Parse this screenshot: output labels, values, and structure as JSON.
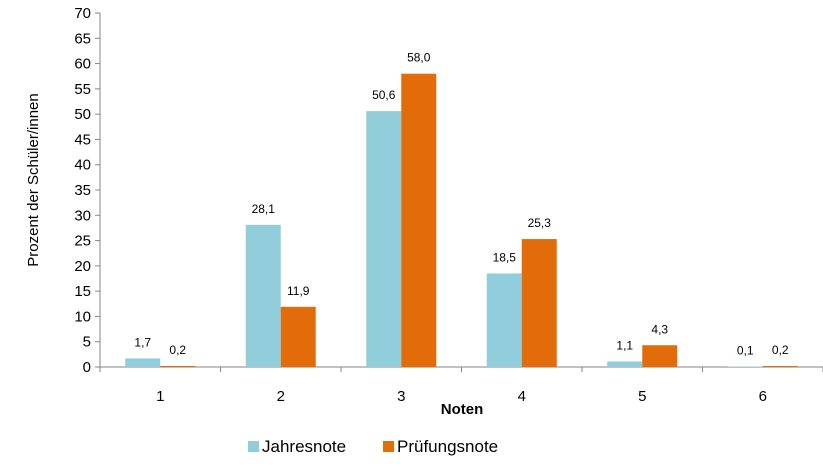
{
  "chart_data": {
    "type": "bar",
    "categories": [
      "1",
      "2",
      "3",
      "4",
      "5",
      "6"
    ],
    "series": [
      {
        "name": "Jahresnote",
        "values": [
          1.7,
          28.1,
          50.6,
          18.5,
          1.1,
          0.1
        ],
        "labels": [
          "1,7",
          "28,1",
          "50,6",
          "18,5",
          "1,1",
          "0,1"
        ],
        "color": "#92cddc"
      },
      {
        "name": "Prüfungsnote",
        "values": [
          0.2,
          11.9,
          58.0,
          25.3,
          4.3,
          0.2
        ],
        "labels": [
          "0,2",
          "11,9",
          "58,0",
          "25,3",
          "4,3",
          "0,2"
        ],
        "color": "#e36c0a"
      }
    ],
    "xlabel": "Noten",
    "ylabel": "Prozent der Schüler/innen",
    "ylim": [
      0,
      70
    ],
    "yticks": [
      0,
      5,
      10,
      15,
      20,
      25,
      30,
      35,
      40,
      45,
      50,
      55,
      60,
      65,
      70
    ],
    "grid": false,
    "legend": "bottom"
  }
}
